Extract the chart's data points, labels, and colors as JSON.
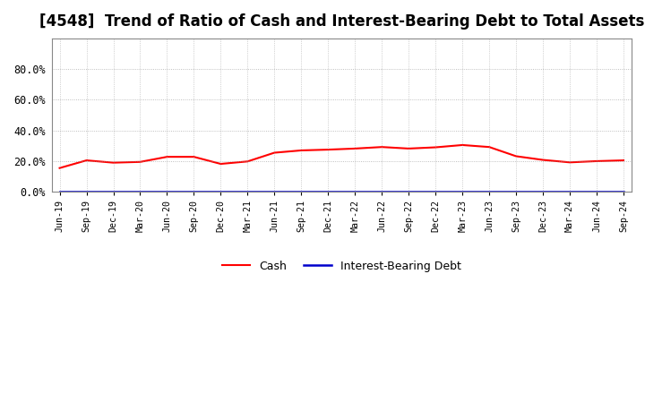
{
  "title": "[4548]  Trend of Ratio of Cash and Interest-Bearing Debt to Total Assets",
  "x_labels": [
    "Jun-19",
    "Sep-19",
    "Dec-19",
    "Mar-20",
    "Jun-20",
    "Sep-20",
    "Dec-20",
    "Mar-21",
    "Jun-21",
    "Sep-21",
    "Dec-21",
    "Mar-22",
    "Jun-22",
    "Sep-22",
    "Dec-22",
    "Mar-23",
    "Jun-23",
    "Sep-23",
    "Dec-23",
    "Mar-24",
    "Jun-24",
    "Sep-24"
  ],
  "cash_values": [
    0.155,
    0.205,
    0.19,
    0.195,
    0.228,
    0.228,
    0.182,
    0.198,
    0.255,
    0.27,
    0.275,
    0.282,
    0.292,
    0.282,
    0.29,
    0.305,
    0.292,
    0.232,
    0.208,
    0.192,
    0.2,
    0.205
  ],
  "debt_values": [
    0.003,
    0.003,
    0.003,
    0.003,
    0.003,
    0.003,
    0.003,
    0.003,
    0.003,
    0.003,
    0.003,
    0.003,
    0.003,
    0.003,
    0.003,
    0.003,
    0.003,
    0.003,
    0.003,
    0.003,
    0.003,
    0.003
  ],
  "cash_color": "#FF0000",
  "debt_color": "#0000CC",
  "ylim": [
    0.0,
    1.0
  ],
  "yticks": [
    0.0,
    0.2,
    0.4,
    0.6,
    0.8
  ],
  "ytick_labels": [
    "0.0%",
    "20.0%",
    "40.0%",
    "60.0%",
    "80.0%"
  ],
  "background_color": "#FFFFFF",
  "grid_color": "#999999",
  "title_fontsize": 12,
  "legend_cash": "Cash",
  "legend_debt": "Interest-Bearing Debt"
}
